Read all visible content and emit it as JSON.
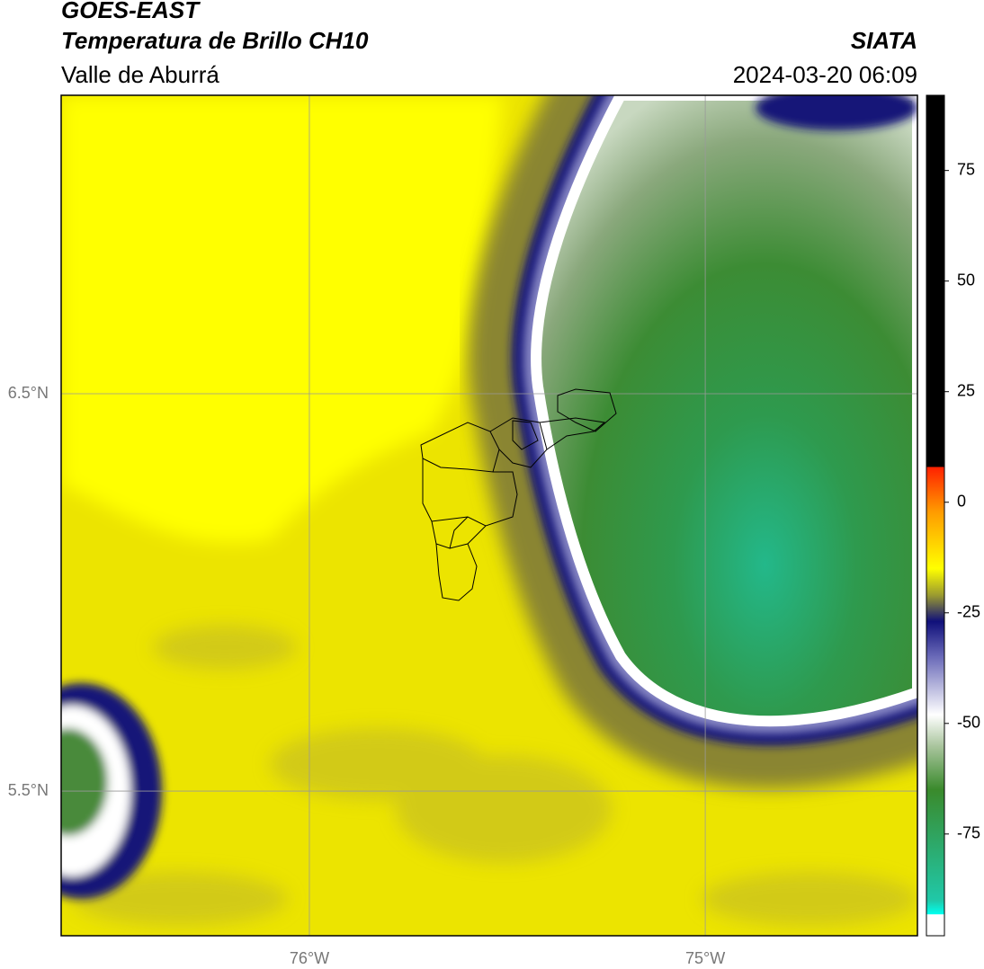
{
  "header": {
    "title": "GOES-EAST",
    "subtitle": "Temperatura de Brillo CH10",
    "region": "Valle de Aburrá",
    "source": "SIATA",
    "datetime": "2024-03-20 06:09"
  },
  "map": {
    "xlim": [
      -76.627,
      -74.464
    ],
    "ylim": [
      5.136,
      7.251
    ],
    "xticks": [
      {
        "value": -76,
        "label": "76°W"
      },
      {
        "value": -75,
        "label": "75°W"
      }
    ],
    "yticks": [
      {
        "value": 5.5,
        "label": "5.5°N"
      },
      {
        "value": 6.5,
        "label": "6.5°N"
      }
    ],
    "grid": true
  },
  "colorbar": {
    "lim": [
      -98,
      92
    ],
    "ticks": [
      -75,
      -50,
      -25,
      0,
      25,
      50,
      75
    ]
  }
}
